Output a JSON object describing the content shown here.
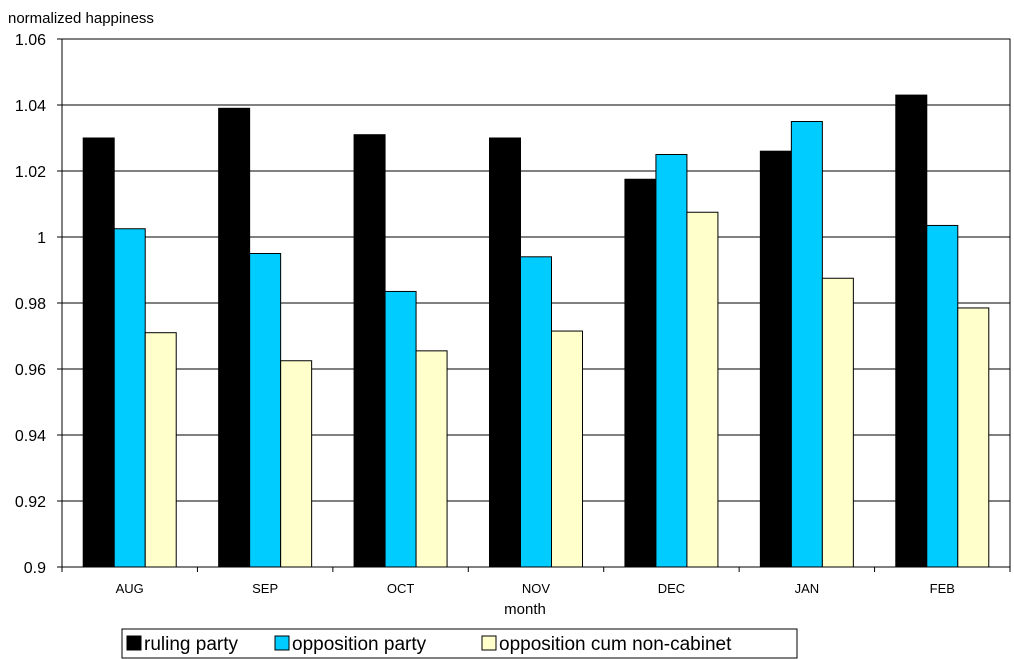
{
  "chart_data": {
    "type": "bar",
    "ylabel": "normalized happiness",
    "xlabel": "month",
    "ylim": [
      0.9,
      1.06
    ],
    "yticks": [
      0.9,
      0.92,
      0.94,
      0.96,
      0.98,
      1.0,
      1.02,
      1.04,
      1.06
    ],
    "ytick_labels": [
      "0.9",
      "0.92",
      "0.94",
      "0.96",
      "0.98",
      "1",
      "1.02",
      "1.04",
      "1.06"
    ],
    "grid": true,
    "legend_position": "bottom",
    "categories": [
      "AUG",
      "SEP",
      "OCT",
      "NOV",
      "DEC",
      "JAN",
      "FEB"
    ],
    "series": [
      {
        "name": "ruling party",
        "color": "#000000",
        "values": [
          1.03,
          1.039,
          1.031,
          1.03,
          1.0175,
          1.026,
          1.043
        ]
      },
      {
        "name": "opposition party",
        "color": "#00ccff",
        "values": [
          1.0025,
          0.995,
          0.9835,
          0.994,
          1.025,
          1.035,
          1.0035
        ]
      },
      {
        "name": "opposition cum non-cabinet",
        "color": "#ffffcc",
        "values": [
          0.971,
          0.9625,
          0.9655,
          0.9715,
          1.0075,
          0.9875,
          0.9785
        ]
      }
    ]
  }
}
